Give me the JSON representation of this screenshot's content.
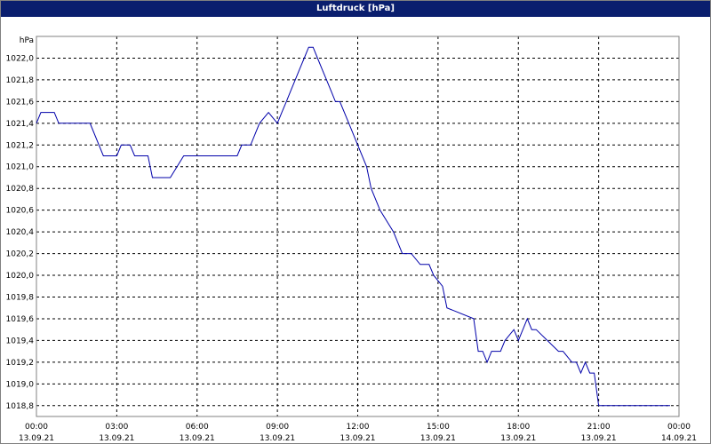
{
  "window": {
    "title": "Luftdruck [hPa]"
  },
  "colors": {
    "titlebar": "#0a1e6e",
    "line": "#0000aa",
    "grid": "#000000"
  },
  "chart_data": {
    "type": "line",
    "title": "Luftdruck [hPa]",
    "ylabel": "hPa",
    "xlabel": "",
    "ylim": [
      1018.7,
      1022.2
    ],
    "xlim": [
      "13.09.21 00:00",
      "14.09.21 00:00"
    ],
    "grid": true,
    "x_ticks": [
      {
        "time": "00:00",
        "date": "13.09.21"
      },
      {
        "time": "03:00",
        "date": "13.09.21"
      },
      {
        "time": "06:00",
        "date": "13.09.21"
      },
      {
        "time": "09:00",
        "date": "13.09.21"
      },
      {
        "time": "12:00",
        "date": "13.09.21"
      },
      {
        "time": "15:00",
        "date": "13.09.21"
      },
      {
        "time": "18:00",
        "date": "13.09.21"
      },
      {
        "time": "21:00",
        "date": "13.09.21"
      },
      {
        "time": "00:00",
        "date": "14.09.21"
      }
    ],
    "y_ticks": [
      "1018,8",
      "1019,0",
      "1019,2",
      "1019,4",
      "1019,6",
      "1019,8",
      "1020,0",
      "1020,2",
      "1020,4",
      "1020,6",
      "1020,8",
      "1021,0",
      "1021,2",
      "1021,4",
      "1021,6",
      "1021,8",
      "1022,0"
    ],
    "series": [
      {
        "x": [
          "13.09.21 00:00",
          "13.09.21 00:10",
          "13.09.21 00:40",
          "13.09.21 00:50",
          "13.09.21 02:00",
          "13.09.21 02:30",
          "13.09.21 03:00",
          "13.09.21 03:10",
          "13.09.21 03:30",
          "13.09.21 03:40",
          "13.09.21 04:10",
          "13.09.21 04:20",
          "13.09.21 05:00",
          "13.09.21 05:30",
          "13.09.21 06:00",
          "13.09.21 06:10",
          "13.09.21 07:30",
          "13.09.21 07:40",
          "13.09.21 08:00",
          "13.09.21 08:20",
          "13.09.21 08:40",
          "13.09.21 09:00",
          "13.09.21 09:10",
          "13.09.21 09:20",
          "13.09.21 09:30",
          "13.09.21 09:40",
          "13.09.21 09:50",
          "13.09.21 10:00",
          "13.09.21 10:10",
          "13.09.21 10:20",
          "13.09.21 10:30",
          "13.09.21 10:40",
          "13.09.21 10:50",
          "13.09.21 11:00",
          "13.09.21 11:10",
          "13.09.21 11:20",
          "13.09.21 11:40",
          "13.09.21 12:00",
          "13.09.21 12:20",
          "13.09.21 12:30",
          "13.09.21 12:50",
          "13.09.21 13:20",
          "13.09.21 13:40",
          "13.09.21 14:00",
          "13.09.21 14:20",
          "13.09.21 14:40",
          "13.09.21 14:50",
          "13.09.21 15:10",
          "13.09.21 15:20",
          "13.09.21 16:20",
          "13.09.21 16:30",
          "13.09.21 16:40",
          "13.09.21 16:50",
          "13.09.21 17:00",
          "13.09.21 17:20",
          "13.09.21 17:30",
          "13.09.21 17:50",
          "13.09.21 18:00",
          "13.09.21 18:20",
          "13.09.21 18:30",
          "13.09.21 18:40",
          "13.09.21 19:30",
          "13.09.21 19:40",
          "13.09.21 20:00",
          "13.09.21 20:10",
          "13.09.21 20:20",
          "13.09.21 20:30",
          "13.09.21 20:40",
          "13.09.21 20:50",
          "13.09.21 21:00",
          "13.09.21 21:20",
          "13.09.21 21:40",
          "13.09.21 22:10",
          "13.09.21 22:20",
          "13.09.21 22:30",
          "13.09.21 22:40",
          "13.09.21 22:50",
          "13.09.21 23:00",
          "13.09.21 23:20",
          "13.09.21 23:40"
        ],
        "y": [
          1021.4,
          1021.5,
          1021.5,
          1021.4,
          1021.4,
          1021.1,
          1021.1,
          1021.2,
          1021.2,
          1021.1,
          1021.1,
          1020.9,
          1020.9,
          1021.1,
          1021.1,
          1021.1,
          1021.1,
          1021.2,
          1021.2,
          1021.4,
          1021.5,
          1021.4,
          1021.5,
          1021.6,
          1021.7,
          1021.8,
          1021.9,
          1022.0,
          1022.1,
          1022.1,
          1022.0,
          1021.9,
          1021.8,
          1021.7,
          1021.6,
          1021.6,
          1021.4,
          1021.2,
          1021.0,
          1020.8,
          1020.6,
          1020.4,
          1020.2,
          1020.2,
          1020.1,
          1020.1,
          1020.0,
          1019.9,
          1019.7,
          1019.6,
          1019.3,
          1019.3,
          1019.2,
          1019.3,
          1019.3,
          1019.4,
          1019.5,
          1019.4,
          1019.6,
          1019.5,
          1019.5,
          1019.3,
          1019.3,
          1019.2,
          1019.2,
          1019.1,
          1019.2,
          1019.1,
          1019.1,
          1018.8,
          1018.8,
          1018.8,
          1018.8,
          1018.8,
          1018.8,
          1018.8,
          1018.8,
          1018.8,
          1018.8,
          1018.8
        ]
      }
    ]
  }
}
